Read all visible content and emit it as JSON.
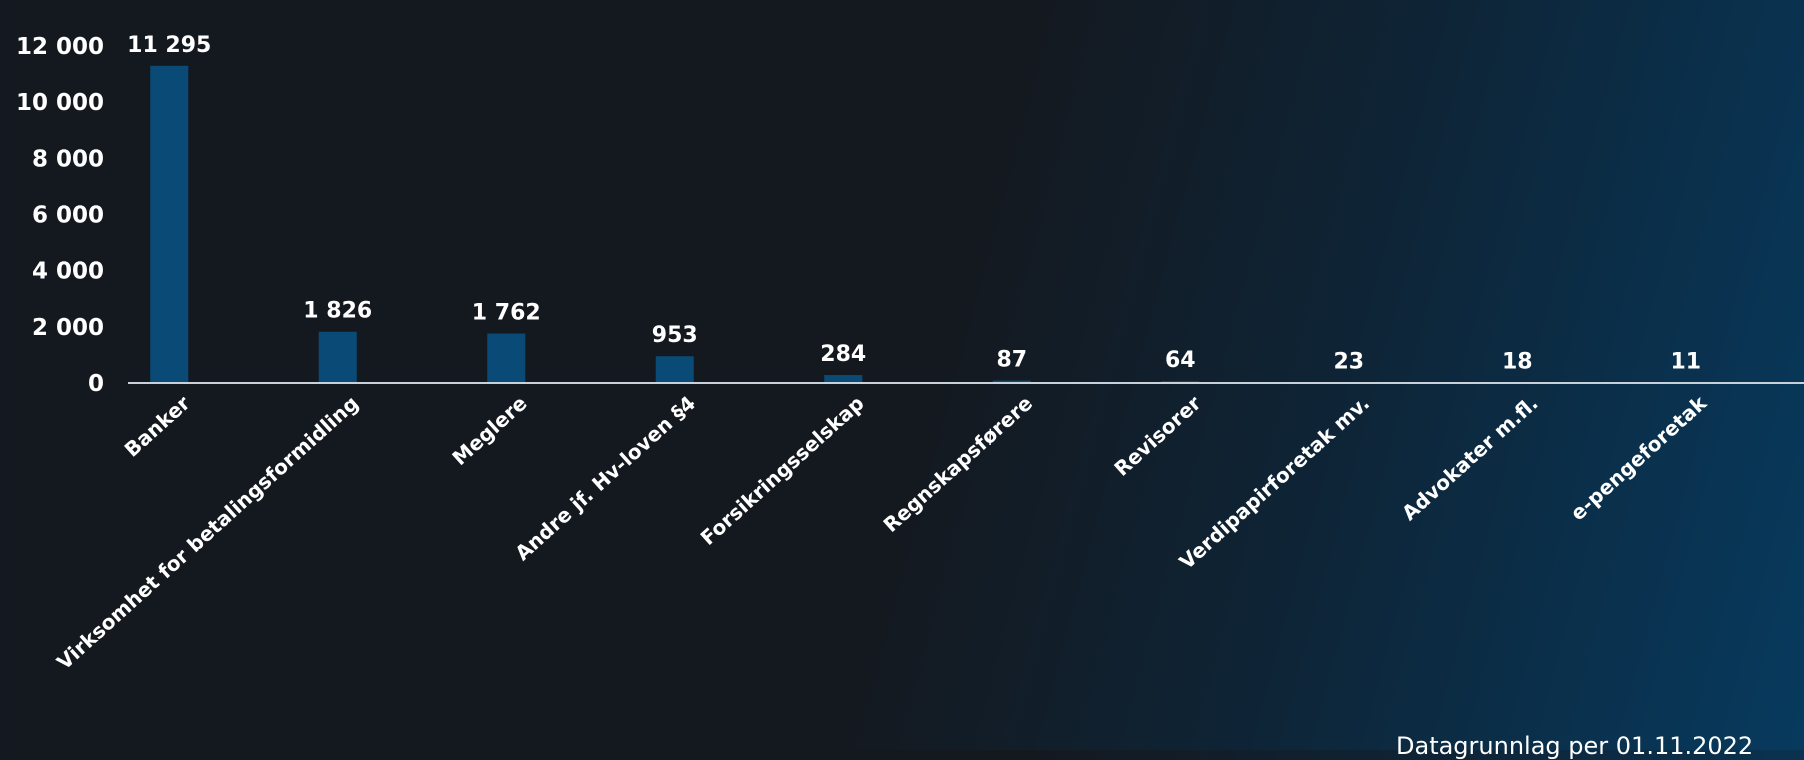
{
  "chart_data": {
    "type": "bar",
    "categories": [
      "Banker",
      "Virksomhet for betalingsformidling",
      "Meglere",
      "Andre jf. Hv-loven §4",
      "Forsikringsselskap",
      "Regnskapsførere",
      "Revisorer",
      "Verdipapirforetak mv.",
      "Advokater m.fl.",
      "e-pengeforetak"
    ],
    "values": [
      11295,
      1826,
      1762,
      953,
      284,
      87,
      64,
      23,
      18,
      11
    ],
    "data_labels": [
      "11 295",
      "1 826",
      "1 762",
      "953",
      "284",
      "87",
      "64",
      "23",
      "18",
      "11"
    ],
    "y_ticks": [
      "0",
      "2 000",
      "4 000",
      "6 000",
      "8 000",
      "10 000",
      "12 000"
    ],
    "ylim": [
      0,
      12000
    ],
    "title": "",
    "xlabel": "",
    "ylabel": "",
    "grid": false,
    "bar_color": "#0a4a77",
    "axis_color": "#c8d0da",
    "text_color": "#ffffff"
  },
  "footnote": "Datagrunnlag per 01.11.2022"
}
